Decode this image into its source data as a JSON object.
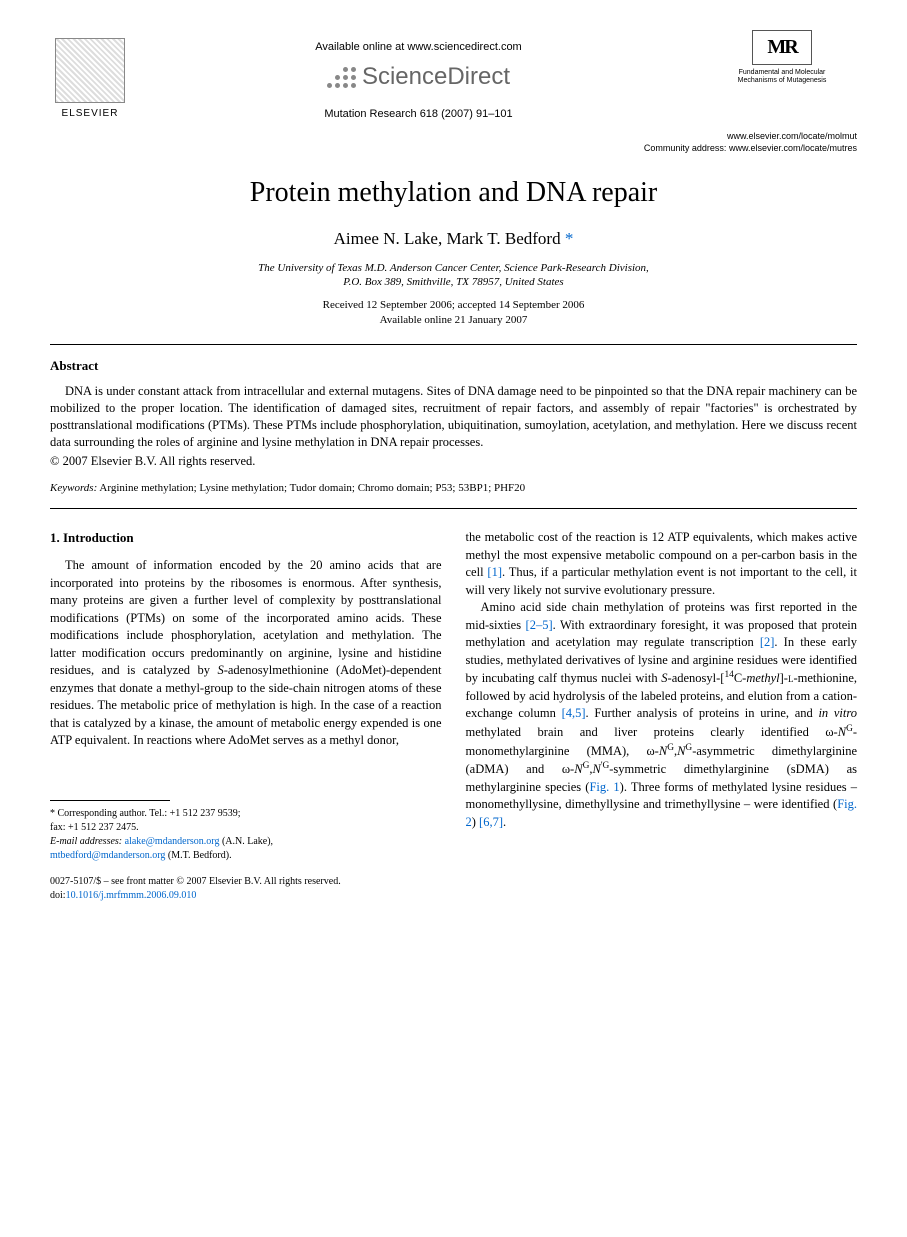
{
  "header": {
    "elsevier_label": "ELSEVIER",
    "available_online": "Available online at www.sciencedirect.com",
    "sciencedirect": "ScienceDirect",
    "journal_ref": "Mutation Research 618 (2007) 91–101",
    "mr_logo": "MR",
    "mr_sub1": "Fundamental and Molecular",
    "mr_sub2": "Mechanisms of Mutagenesis",
    "url1": "www.elsevier.com/locate/molmut",
    "url2_label": "Community address:",
    "url2": "www.elsevier.com/locate/mutres"
  },
  "title": "Protein methylation and DNA repair",
  "authors": "Aimee N. Lake, Mark T. Bedford",
  "affiliation1": "The University of Texas M.D. Anderson Cancer Center, Science Park-Research Division,",
  "affiliation2": "P.O. Box 389, Smithville, TX 78957, United States",
  "dates1": "Received 12 September 2006; accepted 14 September 2006",
  "dates2": "Available online 21 January 2007",
  "abstract": {
    "heading": "Abstract",
    "body": "DNA is under constant attack from intracellular and external mutagens. Sites of DNA damage need to be pinpointed so that the DNA repair machinery can be mobilized to the proper location. The identification of damaged sites, recruitment of repair factors, and assembly of repair \"factories\" is orchestrated by posttranslational modifications (PTMs). These PTMs include phosphorylation, ubiquitination, sumoylation, acetylation, and methylation. Here we discuss recent data surrounding the roles of arginine and lysine methylation in DNA repair processes.",
    "copyright": "© 2007 Elsevier B.V. All rights reserved."
  },
  "keywords": {
    "label": "Keywords:",
    "text": "Arginine methylation; Lysine methylation; Tudor domain; Chromo domain; P53; 53BP1; PHF20"
  },
  "section1": {
    "heading": "1. Introduction",
    "p1a": "The amount of information encoded by the 20 amino acids that are incorporated into proteins by the ribosomes is enormous. After synthesis, many proteins are given a further level of complexity by posttranslational modifications (PTMs) on some of the incorporated amino acids. These modifications include phosphorylation, acetylation and methylation. The latter modification occurs predominantly on arginine, lysine and histidine residues, and is catalyzed by ",
    "p1_ital1": "S",
    "p1b": "-adenosylmethionine (AdoMet)-dependent enzymes that donate a methyl-group to the side-chain nitrogen atoms of these residues. The metabolic price of methylation is high. In the case of a reaction that is catalyzed by a kinase, the amount of metabolic energy expended is one ATP equivalent. In reactions where AdoMet serves as a methyl donor,",
    "p1c": "the metabolic cost of the reaction is 12 ATP equivalents, which makes active methyl the most expensive metabolic compound on a per-carbon basis in the cell ",
    "ref1": "[1]",
    "p1d": ". Thus, if a particular methylation event is not important to the cell, it will very likely not survive evolutionary pressure.",
    "p2a": "Amino acid side chain methylation of proteins was first reported in the mid-sixties ",
    "ref25": "[2–5]",
    "p2b": ". With extraordinary foresight, it was proposed that protein methylation and acetylation may regulate transcription ",
    "ref2": "[2]",
    "p2c": ". In these early studies, methylated derivatives of lysine and arginine residues were identified by incubating calf thymus nuclei with ",
    "p2_ital": "S",
    "p2d": "-adenosyl-[",
    "sup14": "14",
    "p2e": "C-",
    "p2_methyl": "methyl",
    "p2f": "]-",
    "p2_sc": "l",
    "p2g": "-methionine, followed by acid hydrolysis of the labeled proteins, and elution from a cation-exchange column ",
    "ref45": "[4,5]",
    "p2h": ". Further analysis of proteins in urine, and ",
    "p2_invitro": "in vitro",
    "p2i": " methylated brain and liver proteins clearly identified ω-",
    "ng1": "N",
    "supG1": "G",
    "p2j": "-monomethylarginine (MMA), ω-",
    "ng2": "N",
    "supG2": "G",
    "comma": ",",
    "ng3": "N",
    "supG3": "G",
    "p2k": "-asymmetric dimethylarginine (aDMA) and ω-",
    "ng4": "N",
    "supG4": "G",
    "ng5": "N",
    "supG5": "'G",
    "p2l": "-symmetric dimethylarginine (sDMA) as methylarginine species (",
    "fig1": "Fig. 1",
    "p2m": "). Three forms of methylated lysine residues – monomethyllysine, dimethyllysine and trimethyllysine – were identified (",
    "fig2": "Fig. 2",
    "p2n": ") ",
    "ref67": "[6,7]",
    "p2o": "."
  },
  "footnote": {
    "corr_label": "* Corresponding author. Tel.: +1 512 237 9539;",
    "fax": "fax: +1 512 237 2475.",
    "email_label": "E-mail addresses:",
    "email1": "alake@mdanderson.org",
    "name1": "(A.N. Lake),",
    "email2": "mtbedford@mdanderson.org",
    "name2": "(M.T. Bedford)."
  },
  "doi": {
    "front": "0027-5107/$ – see front matter © 2007 Elsevier B.V. All rights reserved.",
    "label": "doi:",
    "link": "10.1016/j.mrfmmm.2006.09.010"
  },
  "colors": {
    "link": "#0066cc",
    "text": "#000000",
    "bg": "#ffffff"
  }
}
